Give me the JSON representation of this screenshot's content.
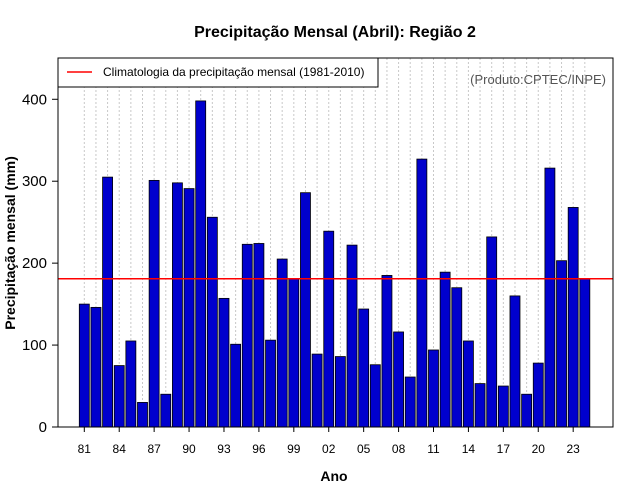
{
  "chart_data": {
    "type": "bar",
    "title": "Precipitação Mensal (Abril): Região 2",
    "xlabel": "Ano",
    "ylabel": "Precipitação mensal (mm)",
    "ylim": [
      0,
      450
    ],
    "yticks": [
      0,
      100,
      200,
      300,
      400
    ],
    "categories": [
      "1981",
      "1982",
      "1983",
      "1984",
      "1985",
      "1986",
      "1987",
      "1988",
      "1989",
      "1990",
      "1991",
      "1992",
      "1993",
      "1994",
      "1995",
      "1996",
      "1997",
      "1998",
      "1999",
      "2000",
      "2001",
      "2002",
      "2003",
      "2004",
      "2005",
      "2006",
      "2007",
      "2008",
      "2009",
      "2010",
      "2011",
      "2012",
      "2013",
      "2014",
      "2015",
      "2016",
      "2017",
      "2018",
      "2019",
      "2020",
      "2021",
      "2022",
      "2023",
      "2024"
    ],
    "xtick_labels": [
      {
        "index": 0,
        "label": "81"
      },
      {
        "index": 3,
        "label": "84"
      },
      {
        "index": 6,
        "label": "87"
      },
      {
        "index": 9,
        "label": "90"
      },
      {
        "index": 12,
        "label": "93"
      },
      {
        "index": 15,
        "label": "96"
      },
      {
        "index": 18,
        "label": "99"
      },
      {
        "index": 21,
        "label": "02"
      },
      {
        "index": 24,
        "label": "05"
      },
      {
        "index": 27,
        "label": "08"
      },
      {
        "index": 30,
        "label": "11"
      },
      {
        "index": 33,
        "label": "14"
      },
      {
        "index": 36,
        "label": "17"
      },
      {
        "index": 39,
        "label": "20"
      },
      {
        "index": 42,
        "label": "23"
      }
    ],
    "series": [
      {
        "name": "Precipitação mensal",
        "color": "#0000cd",
        "values": [
          150,
          146,
          305,
          75,
          105,
          30,
          301,
          40,
          298,
          291,
          398,
          256,
          157,
          101,
          223,
          224,
          106,
          205,
          181,
          286,
          89,
          239,
          86,
          222,
          144,
          76,
          185,
          116,
          61,
          327,
          94,
          189,
          170,
          105,
          53,
          232,
          50,
          160,
          40,
          78,
          316,
          203,
          268,
          181
        ]
      }
    ],
    "reference_line": {
      "label": "Climatologia da precipitação mensal (1981-2010)",
      "value": 181,
      "color": "#ff0000"
    },
    "legend_position": "top-left",
    "grid": "vertical dotted",
    "annotation": "(Produto:CPTEC/INPE)"
  }
}
